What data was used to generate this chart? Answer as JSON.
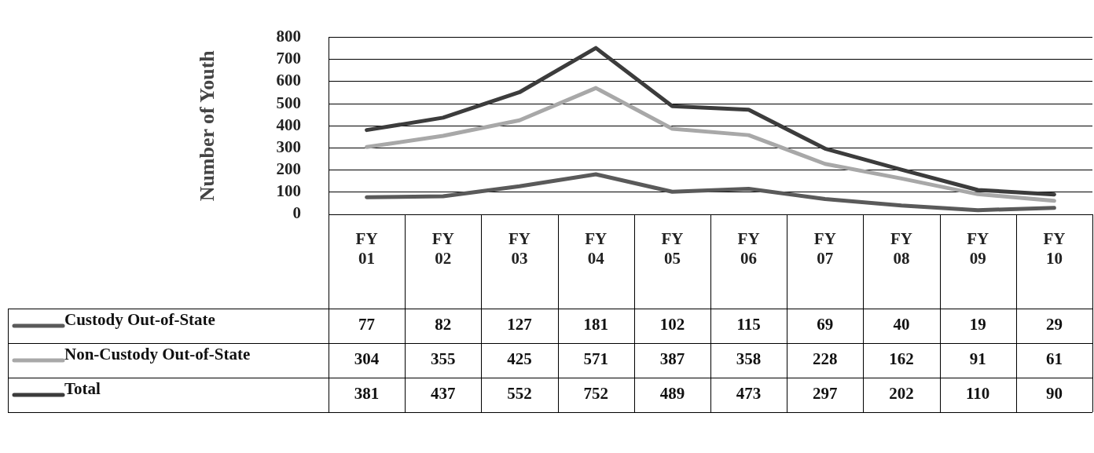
{
  "chart_data": {
    "type": "line",
    "ylabel": "Number of Youth",
    "categories": [
      "FY 01",
      "FY 02",
      "FY 03",
      "FY 04",
      "FY 05",
      "FY 06",
      "FY 07",
      "FY 08",
      "FY 09",
      "FY 10"
    ],
    "series": [
      {
        "name": "Custody Out-of-State",
        "color": "#5a5a5a",
        "values": [
          77,
          82,
          127,
          181,
          102,
          115,
          69,
          40,
          19,
          29
        ]
      },
      {
        "name": "Non-Custody Out-of-State",
        "color": "#a8a8a8",
        "values": [
          304,
          355,
          425,
          571,
          387,
          358,
          228,
          162,
          91,
          61
        ]
      },
      {
        "name": "Total",
        "color": "#3c3c3c",
        "values": [
          381,
          437,
          552,
          752,
          489,
          473,
          297,
          202,
          110,
          90
        ]
      }
    ],
    "ylim": [
      0,
      800
    ],
    "yticks": [
      0,
      100,
      200,
      300,
      400,
      500,
      600,
      700,
      800
    ],
    "grid": "y",
    "legend": "bottom",
    "data_labels": true,
    "marker": "none",
    "line_style": "solid"
  }
}
